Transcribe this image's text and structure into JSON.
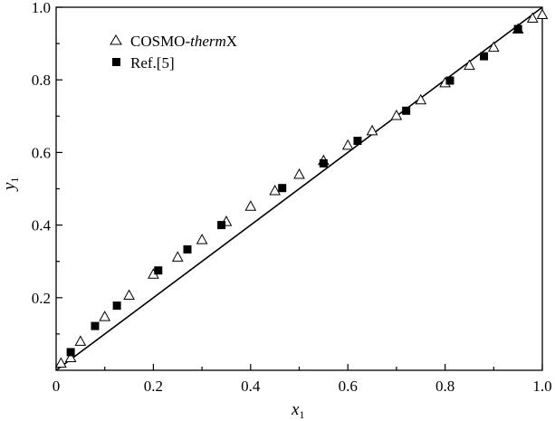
{
  "chart_data": {
    "type": "scatter",
    "xlim": [
      0,
      1
    ],
    "ylim": [
      0,
      1
    ],
    "xticks": [
      "0",
      "0.2",
      "0.4",
      "0.6",
      "0.8",
      "1.0"
    ],
    "yticks": [
      "0.2",
      "0.4",
      "0.6",
      "0.8",
      "1.0"
    ],
    "xlabel": {
      "main": "x",
      "sub": "1"
    },
    "ylabel": {
      "main": "y",
      "sub": "1"
    },
    "legend_position": "top-left",
    "grid": false,
    "diagonal_reference_line": true,
    "series": [
      {
        "name_parts": [
          "COSMO-",
          "therm",
          "X"
        ],
        "marker": "open-triangle",
        "points": [
          [
            0.01,
            0.02
          ],
          [
            0.03,
            0.035
          ],
          [
            0.05,
            0.08
          ],
          [
            0.1,
            0.148
          ],
          [
            0.15,
            0.207
          ],
          [
            0.2,
            0.265
          ],
          [
            0.25,
            0.312
          ],
          [
            0.3,
            0.36
          ],
          [
            0.35,
            0.41
          ],
          [
            0.4,
            0.452
          ],
          [
            0.45,
            0.495
          ],
          [
            0.5,
            0.54
          ],
          [
            0.55,
            0.578
          ],
          [
            0.6,
            0.62
          ],
          [
            0.65,
            0.66
          ],
          [
            0.7,
            0.702
          ],
          [
            0.75,
            0.745
          ],
          [
            0.8,
            0.792
          ],
          [
            0.85,
            0.84
          ],
          [
            0.9,
            0.89
          ],
          [
            0.95,
            0.94
          ],
          [
            0.98,
            0.97
          ],
          [
            1.0,
            0.98
          ]
        ]
      },
      {
        "name": "Ref.[5]",
        "marker": "filled-square",
        "points": [
          [
            0.03,
            0.05
          ],
          [
            0.08,
            0.122
          ],
          [
            0.125,
            0.178
          ],
          [
            0.21,
            0.275
          ],
          [
            0.27,
            0.333
          ],
          [
            0.34,
            0.4
          ],
          [
            0.465,
            0.502
          ],
          [
            0.55,
            0.57
          ],
          [
            0.62,
            0.632
          ],
          [
            0.72,
            0.715
          ],
          [
            0.81,
            0.798
          ],
          [
            0.88,
            0.865
          ],
          [
            0.95,
            0.94
          ]
        ]
      }
    ]
  }
}
